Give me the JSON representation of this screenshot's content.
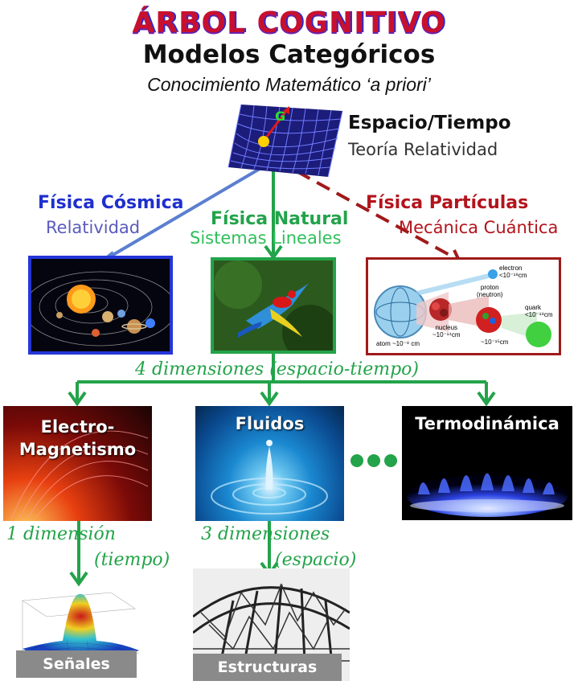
{
  "header": {
    "title": "ÁRBOL COGNITIVO",
    "subtitle": "Modelos Categóricos",
    "tagline": "Conocimiento Matemático  ‘a priori’"
  },
  "root": {
    "title": "Espacio/Tiempo",
    "subtitle": "Teoría Relatividad",
    "icon": "spacetime-grid-icon"
  },
  "branches": [
    {
      "title": "Física Cósmica",
      "subtitle": "Relatividad",
      "color": "#1f2fcf",
      "subcolor": "#5b5bbd",
      "icon": "solar-system-icon"
    },
    {
      "title": "Física  Natural",
      "subtitle": "Sistemas  Lineales",
      "color": "#23a34a",
      "subcolor": "#2fbf5a",
      "icon": "parrot-icon"
    },
    {
      "title": "Física Partículas",
      "subtitle": "Mecánica Cuántica",
      "color": "#b3141c",
      "subcolor": "#b3141c",
      "icon": "atom-structure-icon"
    }
  ],
  "particles": {
    "electron": "electron",
    "electron_size": "<10⁻¹⁸cm",
    "proton": "proton",
    "neutron": "(neutron)",
    "quark": "quark",
    "quark_size": "<10⁻¹⁹cm",
    "nucleus": "nucleus",
    "nucleus_size": "~10⁻¹⁴cm",
    "proton_size": "~10⁻¹⁵cm",
    "atom": "atom ~10⁻⁸ cm"
  },
  "level2_label": "4 dimensiones (espacio-tiempo)",
  "fields": [
    {
      "title": "Electro-",
      "title2": "Magnetismo",
      "icon": "sun-magnetic-field-icon"
    },
    {
      "title": "Fluidos",
      "icon": "water-drop-icon"
    },
    {
      "title": "Termodinámica",
      "icon": "gas-flame-icon"
    }
  ],
  "ellipsis_color": "#23a34a",
  "level3_labels": {
    "left_1": "1 dimensión",
    "left_2": "(tiempo)",
    "right_1": "3  dimensiones",
    "right_2": "(espacio)"
  },
  "leaves": [
    {
      "title": "Señales",
      "icon": "signal-surface-plot-icon"
    },
    {
      "title": "Estructuras",
      "icon": "steel-truss-icon"
    }
  ]
}
